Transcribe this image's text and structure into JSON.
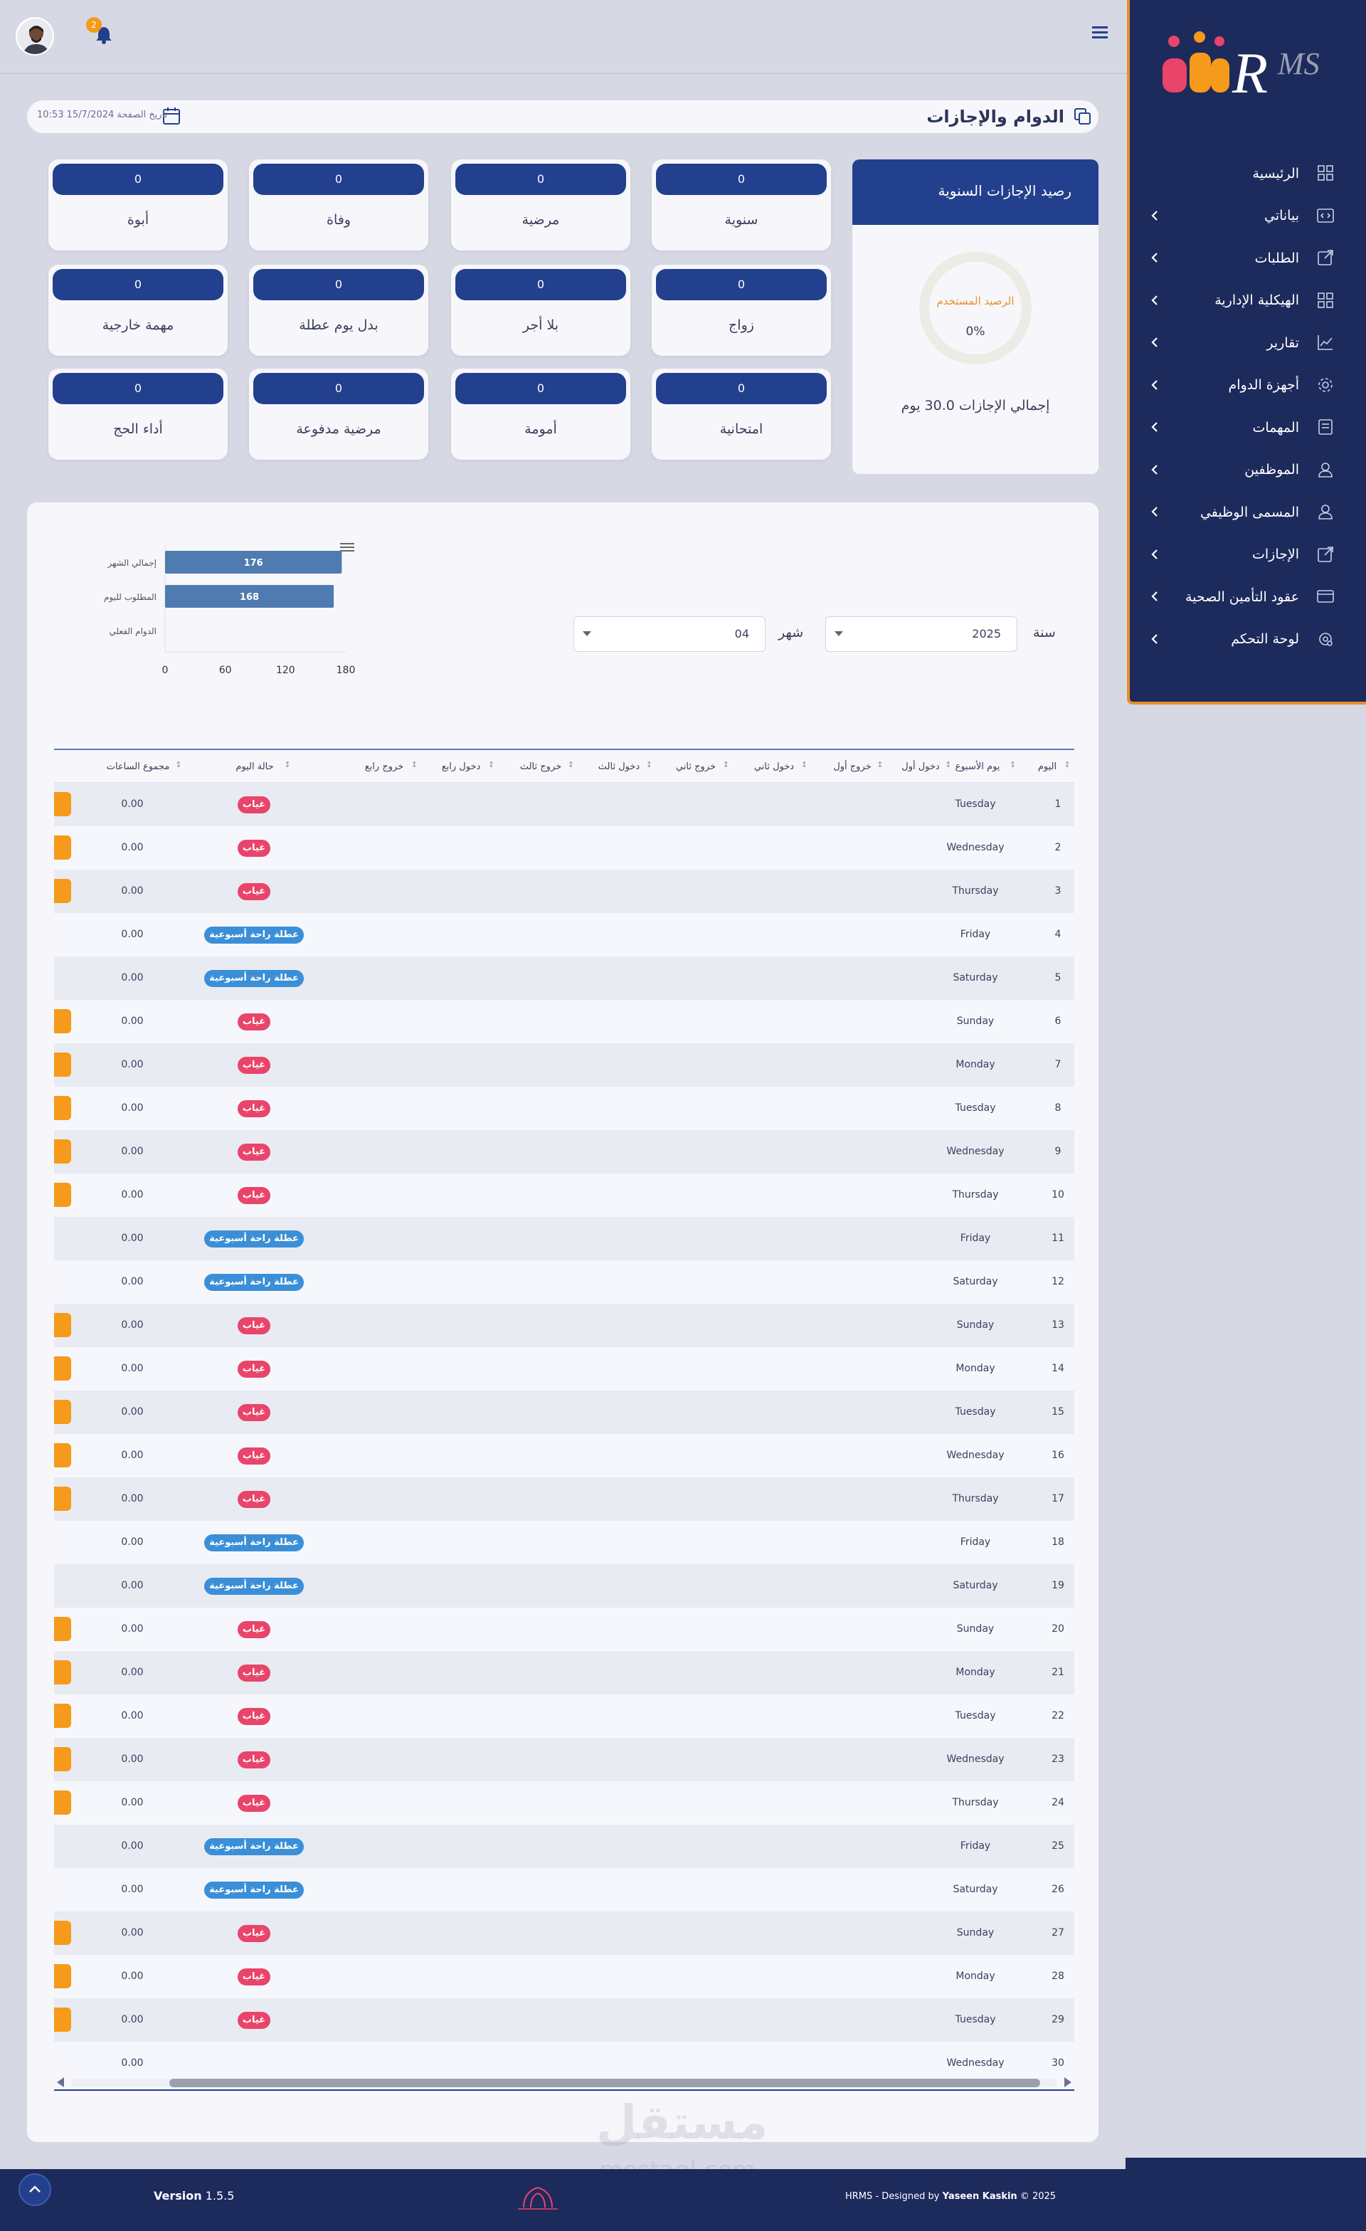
{
  "app": {
    "version_label": "Version",
    "version": "1.5.5",
    "notifications_count": "2"
  },
  "header": {
    "title": "الدوام والإجازات",
    "page_date": "تاريخ الصفحة 15/7/2024 10:53"
  },
  "sidebar": {
    "items": [
      {
        "label": "الرئيسية",
        "icon": "grid-icon",
        "has_submenu": false
      },
      {
        "label": "بياناتي",
        "icon": "code-icon",
        "has_submenu": true
      },
      {
        "label": "الطلبات",
        "icon": "external-link-icon",
        "has_submenu": true
      },
      {
        "label": "الهيكلية الإدارية",
        "icon": "grid-icon",
        "has_submenu": true
      },
      {
        "label": "تقارير",
        "icon": "chart-line-icon",
        "has_submenu": true
      },
      {
        "label": "أجهزة الدوام",
        "icon": "gear-icon",
        "has_submenu": true
      },
      {
        "label": "المهمات",
        "icon": "document-icon",
        "has_submenu": true
      },
      {
        "label": "الموظفين",
        "icon": "user-icon",
        "has_submenu": true
      },
      {
        "label": "المسمى الوظيفي",
        "icon": "user-icon",
        "has_submenu": true
      },
      {
        "label": "الإجازات",
        "icon": "external-link-icon",
        "has_submenu": true
      },
      {
        "label": "عقود التأمين الصحية",
        "icon": "card-icon",
        "has_submenu": true
      },
      {
        "label": "لوحة التحكم",
        "icon": "settings-icon",
        "has_submenu": true
      }
    ]
  },
  "balance": {
    "title": "رصيد الإجازات السنوية",
    "used_label": "الرصيد المستخدم",
    "used_percent": "0%",
    "total_text": "إجمالي الإجازات 30.0 يوم"
  },
  "leave_types": [
    {
      "name": "سنوية",
      "count": "0"
    },
    {
      "name": "مرضية",
      "count": "0"
    },
    {
      "name": "وفاة",
      "count": "0"
    },
    {
      "name": "أبوة",
      "count": "0"
    },
    {
      "name": "زواج",
      "count": "0"
    },
    {
      "name": "بلا أجر",
      "count": "0"
    },
    {
      "name": "بدل يوم عطلة",
      "count": "0"
    },
    {
      "name": "مهمة خارجية",
      "count": "0"
    },
    {
      "name": "امتحانية",
      "count": "0"
    },
    {
      "name": "أمومة",
      "count": "0"
    },
    {
      "name": "مرضية مدفوعة",
      "count": "0"
    },
    {
      "name": "أداء الحج",
      "count": "0"
    }
  ],
  "filters": {
    "year_label": "سنة",
    "year_value": "2025",
    "month_label": "شهر",
    "month_value": "04"
  },
  "chart_data": {
    "type": "bar",
    "orientation": "horizontal",
    "categories": [
      "إجمالي الشهر",
      "المطلوب لليوم",
      "الدوام الفعلي"
    ],
    "values": [
      176,
      168,
      0
    ],
    "xlim": [
      0,
      180
    ],
    "xticks": [
      "0",
      "60",
      "120",
      "180"
    ],
    "color": "#4f7bb0"
  },
  "table": {
    "columns": [
      "اليوم",
      "يوم الأسبوع",
      "دخول أول",
      "خروج أول",
      "دخول ثاني",
      "خروج ثاني",
      "دخول ثالث",
      "خروج ثالث",
      "دخول رابع",
      "خروج رابع",
      "حالة اليوم",
      "مجموع الساعات"
    ],
    "status_labels": {
      "absent": "غياب",
      "weekend": "عطلة راحة أسبوعية"
    },
    "status_colors": {
      "absent": "#e9446a",
      "weekend": "#3a8fd8"
    },
    "rows": [
      {
        "day": "1",
        "weekday": "Tuesday",
        "status": "غياب",
        "hours": "0.00"
      },
      {
        "day": "2",
        "weekday": "Wednesday",
        "status": "غياب",
        "hours": "0.00"
      },
      {
        "day": "3",
        "weekday": "Thursday",
        "status": "غياب",
        "hours": "0.00"
      },
      {
        "day": "4",
        "weekday": "Friday",
        "status": "عطلة راحة أسبوعية",
        "hours": "0.00"
      },
      {
        "day": "5",
        "weekday": "Saturday",
        "status": "عطلة راحة أسبوعية",
        "hours": "0.00"
      },
      {
        "day": "6",
        "weekday": "Sunday",
        "status": "غياب",
        "hours": "0.00"
      },
      {
        "day": "7",
        "weekday": "Monday",
        "status": "غياب",
        "hours": "0.00"
      },
      {
        "day": "8",
        "weekday": "Tuesday",
        "status": "غياب",
        "hours": "0.00"
      },
      {
        "day": "9",
        "weekday": "Wednesday",
        "status": "غياب",
        "hours": "0.00"
      },
      {
        "day": "10",
        "weekday": "Thursday",
        "status": "غياب",
        "hours": "0.00"
      },
      {
        "day": "11",
        "weekday": "Friday",
        "status": "عطلة راحة أسبوعية",
        "hours": "0.00"
      },
      {
        "day": "12",
        "weekday": "Saturday",
        "status": "عطلة راحة أسبوعية",
        "hours": "0.00"
      },
      {
        "day": "13",
        "weekday": "Sunday",
        "status": "غياب",
        "hours": "0.00"
      },
      {
        "day": "14",
        "weekday": "Monday",
        "status": "غياب",
        "hours": "0.00"
      },
      {
        "day": "15",
        "weekday": "Tuesday",
        "status": "غياب",
        "hours": "0.00"
      },
      {
        "day": "16",
        "weekday": "Wednesday",
        "status": "غياب",
        "hours": "0.00"
      },
      {
        "day": "17",
        "weekday": "Thursday",
        "status": "غياب",
        "hours": "0.00"
      },
      {
        "day": "18",
        "weekday": "Friday",
        "status": "عطلة راحة أسبوعية",
        "hours": "0.00"
      },
      {
        "day": "19",
        "weekday": "Saturday",
        "status": "عطلة راحة أسبوعية",
        "hours": "0.00"
      },
      {
        "day": "20",
        "weekday": "Sunday",
        "status": "غياب",
        "hours": "0.00"
      },
      {
        "day": "21",
        "weekday": "Monday",
        "status": "غياب",
        "hours": "0.00"
      },
      {
        "day": "22",
        "weekday": "Tuesday",
        "status": "غياب",
        "hours": "0.00"
      },
      {
        "day": "23",
        "weekday": "Wednesday",
        "status": "غياب",
        "hours": "0.00"
      },
      {
        "day": "24",
        "weekday": "Thursday",
        "status": "غياب",
        "hours": "0.00"
      },
      {
        "day": "25",
        "weekday": "Friday",
        "status": "عطلة راحة أسبوعية",
        "hours": "0.00"
      },
      {
        "day": "26",
        "weekday": "Saturday",
        "status": "عطلة راحة أسبوعية",
        "hours": "0.00"
      },
      {
        "day": "27",
        "weekday": "Sunday",
        "status": "غياب",
        "hours": "0.00"
      },
      {
        "day": "28",
        "weekday": "Monday",
        "status": "غياب",
        "hours": "0.00"
      },
      {
        "day": "29",
        "weekday": "Tuesday",
        "status": "غياب",
        "hours": "0.00"
      },
      {
        "day": "30",
        "weekday": "Wednesday",
        "status": "",
        "hours": "0.00"
      }
    ]
  },
  "footer": {
    "copyright_prefix": "HRMS - Designed by",
    "designer": "Yaseen Kaskin",
    "copyright_suffix": "© 2025"
  },
  "watermark": {
    "text": "مستقل",
    "latin": "mostaql.com"
  },
  "colors": {
    "primary": "#23408e",
    "sidebar": "#1d2a5c",
    "accent": "#f59a1b",
    "absent": "#e9446a",
    "weekend": "#3a8fd8"
  }
}
